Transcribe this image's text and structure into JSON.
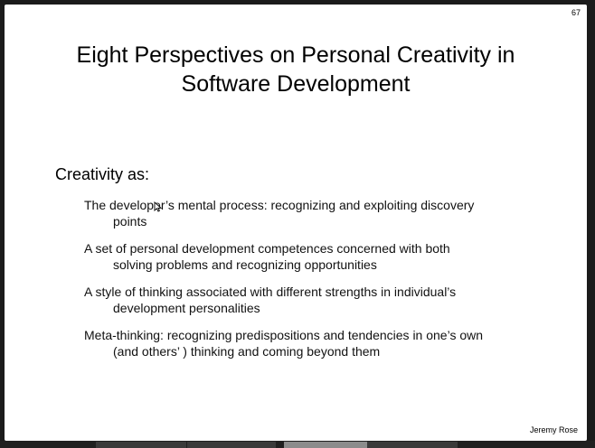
{
  "slide": {
    "number": "67",
    "title": {
      "line1": "Eight Perspectives on Personal Creativity in",
      "line2": "Software Development"
    },
    "section_heading": "Creativity as:",
    "bullets": [
      {
        "line1": "The developer’s mental process: recognizing and exploiting discovery",
        "line2": "points"
      },
      {
        "line1": "A set of personal development competences concerned with both",
        "line2": "solving problems and recognizing opportunities"
      },
      {
        "line1": "A style of thinking associated with different strengths in individual’s",
        "line2": "development personalities"
      },
      {
        "line1": "Meta-thinking: recognizing predispositions and tendencies in one’s own",
        "line2": "(and others’ ) thinking and coming beyond them"
      }
    ],
    "author": "Jeremy Rose"
  },
  "icons": {
    "cursor": "pointer-cursor-icon"
  },
  "colors": {
    "background": "#1b1b1b",
    "slide": "#ffffff",
    "text": "#000000"
  }
}
